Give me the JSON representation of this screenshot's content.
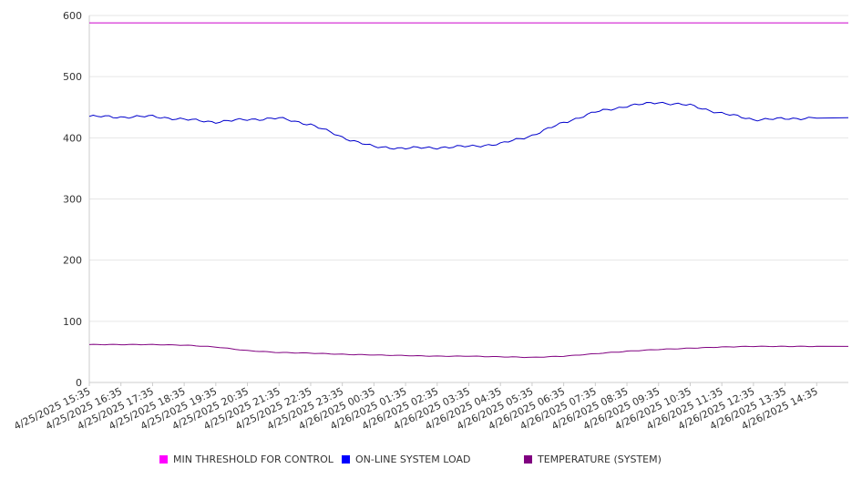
{
  "chart_data": {
    "type": "line",
    "title": "",
    "xlabel": "",
    "ylabel": "",
    "ylim": [
      0,
      600
    ],
    "yticks": [
      0,
      100,
      200,
      300,
      400,
      500,
      600
    ],
    "grid": true,
    "legend_position": "bottom",
    "x": [
      "4/25/2025 15:35",
      "4/25/2025 16:35",
      "4/25/2025 17:35",
      "4/25/2025 18:35",
      "4/25/2025 19:35",
      "4/25/2025 20:35",
      "4/25/2025 21:35",
      "4/25/2025 22:35",
      "4/25/2025 23:35",
      "4/26/2025 00:35",
      "4/26/2025 01:35",
      "4/26/2025 02:35",
      "4/26/2025 03:35",
      "4/26/2025 04:35",
      "4/26/2025 05:35",
      "4/26/2025 06:35",
      "4/26/2025 07:35",
      "4/26/2025 08:35",
      "4/26/2025 09:35",
      "4/26/2025 10:35",
      "4/26/2025 11:35",
      "4/26/2025 12:35",
      "4/26/2025 13:35",
      "4/26/2025 14:35"
    ],
    "series": [
      {
        "name": "MIN THRESHOLD FOR CONTROL",
        "color": "#cc00cc",
        "values": [
          588,
          588,
          588,
          588,
          588,
          588,
          588,
          588,
          588,
          588,
          588,
          588,
          588,
          588,
          588,
          588,
          588,
          588,
          588,
          588,
          588,
          588,
          588,
          588
        ]
      },
      {
        "name": "ON-LINE SYSTEM LOAD",
        "color": "#0000cc",
        "values": [
          435,
          434,
          435,
          430,
          426,
          430,
          432,
          422,
          401,
          385,
          383,
          384,
          386,
          390,
          404,
          425,
          442,
          452,
          458,
          453,
          440,
          430,
          431,
          433
        ]
      },
      {
        "name": "TEMPERATURE (SYSTEM)",
        "color": "#800080",
        "values": [
          62,
          62,
          62,
          61,
          58,
          52,
          49,
          48,
          46,
          45,
          44,
          43,
          43,
          42,
          41,
          43,
          47,
          51,
          54,
          56,
          58,
          59,
          59,
          59
        ]
      }
    ]
  }
}
